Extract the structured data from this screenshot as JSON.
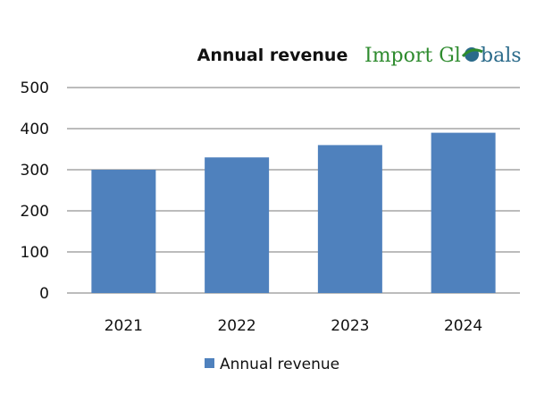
{
  "chart_data": {
    "type": "bar",
    "title": "Annual revenue",
    "categories": [
      "2021",
      "2022",
      "2023",
      "2024"
    ],
    "series": [
      {
        "name": "Annual revenue",
        "values": [
          300,
          330,
          360,
          390
        ],
        "color": "#4f81bd"
      }
    ],
    "xlabel": "",
    "ylabel": "",
    "ylim": [
      0,
      500
    ],
    "yticks": [
      0,
      100,
      200,
      300,
      400,
      500
    ],
    "grid": true,
    "legend": "bottom"
  },
  "logo": {
    "text_part1": "Import Gl",
    "text_part2": "bals",
    "colors": {
      "import": "#2e8b2e",
      "globals": "#2a6a8a"
    }
  }
}
